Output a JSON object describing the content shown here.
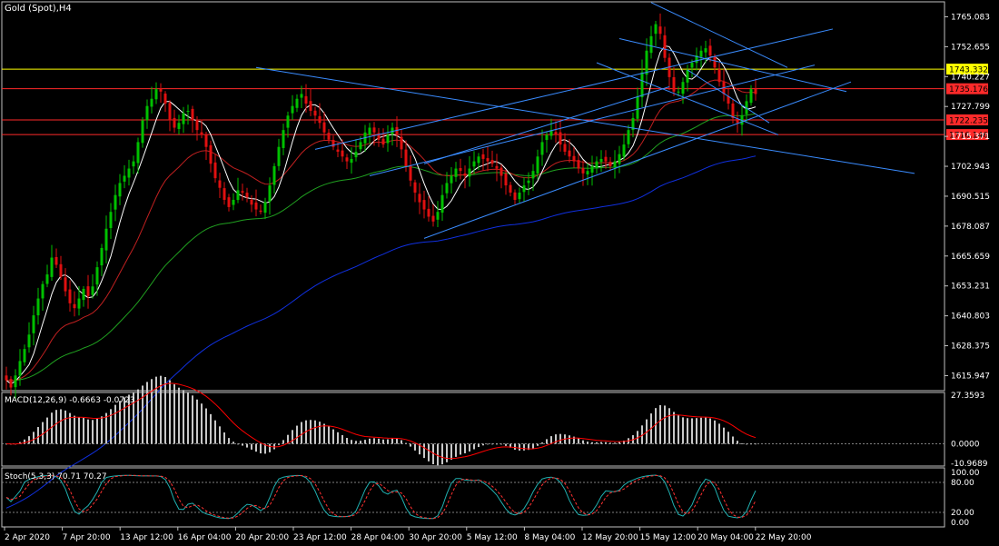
{
  "chart_title": "Gold (Spot),H4",
  "macd_label": "MACD(12,26,9) -0.6663 -0.0723",
  "stoch_label": "Stoch(5,3,3) 70.71 70.27",
  "price_ticks": [
    "1765.083",
    "1752.655",
    "1740.227",
    "1727.799",
    "1715.371",
    "1702.943",
    "1690.515",
    "1678.087",
    "1665.659",
    "1653.231",
    "1640.803",
    "1628.375",
    "1615.947"
  ],
  "macd_ticks": [
    "27.3593",
    "0.0000",
    "-10.9689"
  ],
  "stoch_ticks": [
    "100.00",
    "80.00",
    "20.00",
    "0.00"
  ],
  "time_labels": [
    "2 Apr 2020",
    "7 Apr 20:00",
    "13 Apr 12:00",
    "16 Apr 04:00",
    "20 Apr 20:00",
    "23 Apr 12:00",
    "28 Apr 04:00",
    "30 Apr 20:00",
    "5 May 12:00",
    "8 May 04:00",
    "12 May 20:00",
    "15 May 12:00",
    "20 May 04:00",
    "22 May 20:00"
  ],
  "price_tags": [
    {
      "text": "1743.332",
      "color": "#ffff00"
    },
    {
      "text": "1735.176",
      "color": "#ff2a2a"
    },
    {
      "text": "1722.235",
      "color": "#ff2a2a"
    },
    {
      "text": "1716.146",
      "color": "#ff2a2a"
    }
  ],
  "colors": {
    "up": "#00c000",
    "down": "#e01010",
    "ma_fast": "#ffffff",
    "ma_mid": "#c02020",
    "ma_slow": "#20a020",
    "ma_long": "#1030e0",
    "trend": "#3a8cff",
    "level_yellow": "#ffff00",
    "level_red": "#ff2a2a",
    "macd_hist": "#c8c8c8",
    "macd_signal": "#ff0000",
    "stoch_main": "#20b0b0",
    "stoch_signal": "#ff3030"
  },
  "chart_data": {
    "type": "candlestick",
    "symbol": "Gold (Spot)",
    "timeframe": "H4",
    "ylim": [
      1609.7,
      1771.3
    ],
    "levels": [
      1743.332,
      1735.176,
      1722.235,
      1716.146
    ],
    "close": [
      1614,
      1611,
      1616,
      1622,
      1627,
      1633,
      1641,
      1648,
      1654,
      1658,
      1665,
      1662,
      1657,
      1651,
      1646,
      1644,
      1648,
      1652,
      1649,
      1653,
      1661,
      1669,
      1677,
      1684,
      1691,
      1696,
      1699,
      1702,
      1705,
      1713,
      1722,
      1728,
      1731,
      1735,
      1734,
      1729,
      1722,
      1719,
      1721,
      1725,
      1726,
      1722,
      1718,
      1716,
      1711,
      1704,
      1698,
      1694,
      1689,
      1686,
      1689,
      1693,
      1692,
      1690,
      1687,
      1685,
      1684,
      1688,
      1695,
      1703,
      1711,
      1718,
      1724,
      1728,
      1731,
      1733,
      1729,
      1726,
      1724,
      1721,
      1717,
      1714,
      1711,
      1709,
      1707,
      1705,
      1706,
      1709,
      1713,
      1717,
      1719,
      1717,
      1714,
      1712,
      1716,
      1719,
      1716,
      1710,
      1703,
      1697,
      1692,
      1688,
      1685,
      1682,
      1680,
      1684,
      1691,
      1696,
      1699,
      1702,
      1701,
      1699,
      1702,
      1705,
      1707,
      1706,
      1705,
      1704,
      1702,
      1699,
      1695,
      1692,
      1689,
      1692,
      1695,
      1697,
      1701,
      1707,
      1713,
      1716,
      1718,
      1716,
      1712,
      1709,
      1707,
      1705,
      1702,
      1700,
      1701,
      1703,
      1705,
      1706,
      1705,
      1703,
      1705,
      1708,
      1712,
      1718,
      1723,
      1732,
      1742,
      1751,
      1757,
      1762,
      1758,
      1748,
      1740,
      1734,
      1734,
      1738,
      1743,
      1746,
      1749,
      1751,
      1752,
      1749,
      1744,
      1738,
      1733,
      1729,
      1723,
      1721,
      1724,
      1730,
      1735,
      1733
    ],
    "series": [
      {
        "name": "MA fast",
        "type": "line"
      },
      {
        "name": "MA mid",
        "type": "line"
      },
      {
        "name": "MA slow",
        "type": "line"
      },
      {
        "name": "MA long",
        "type": "line"
      }
    ],
    "indicators": {
      "macd": {
        "params": "12,26,9",
        "main": -0.6663,
        "signal": -0.0723,
        "ylim": [
          -10.9689,
          27.3593
        ]
      },
      "stochastic": {
        "params": "5,3,3",
        "main": 70.71,
        "signal": 70.27,
        "levels": [
          20,
          80
        ],
        "ylim": [
          0,
          100
        ]
      }
    }
  }
}
